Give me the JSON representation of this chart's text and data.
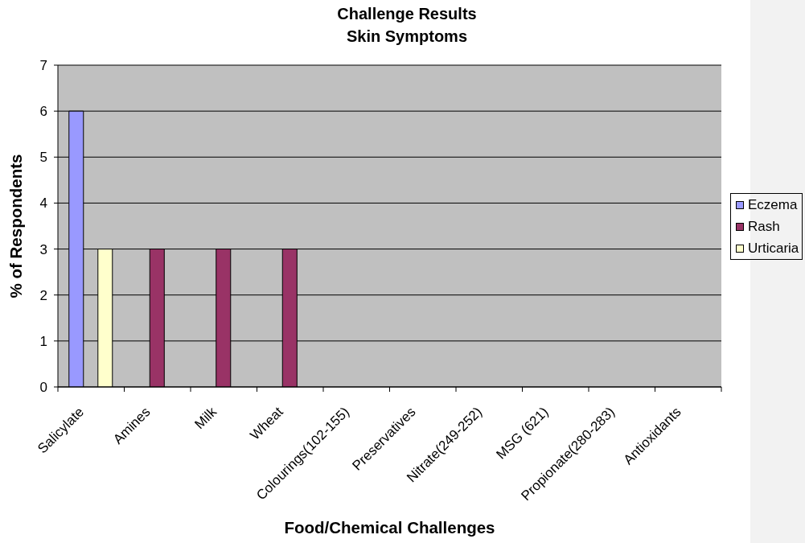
{
  "chart_data": {
    "type": "bar",
    "title": "Challenge Results",
    "subtitle": "Skin Symptoms",
    "xlabel": "Food/Chemical Challenges",
    "ylabel": "% of Respondents",
    "categories": [
      "Salicylate",
      "Amines",
      "Milk",
      "Wheat",
      "Colourings(102-155)",
      "Preservatives",
      "Nitrate(249-252)",
      "MSG (621)",
      "Propionate(280-283)",
      "Antioxidants"
    ],
    "series": [
      {
        "name": "Eczema",
        "color": "#9999ff",
        "values": [
          6,
          null,
          null,
          null,
          null,
          null,
          null,
          null,
          null,
          null
        ]
      },
      {
        "name": "Rash",
        "color": "#993366",
        "values": [
          null,
          3,
          3,
          3,
          null,
          null,
          null,
          null,
          null,
          null
        ]
      },
      {
        "name": "Urticaria",
        "color": "#ffffcc",
        "values": [
          3,
          null,
          null,
          null,
          null,
          null,
          null,
          null,
          null,
          null
        ]
      }
    ],
    "ylim": [
      0,
      7
    ],
    "yticks": [
      0,
      1,
      2,
      3,
      4,
      5,
      6,
      7
    ],
    "grid": "y",
    "legend": "right"
  }
}
